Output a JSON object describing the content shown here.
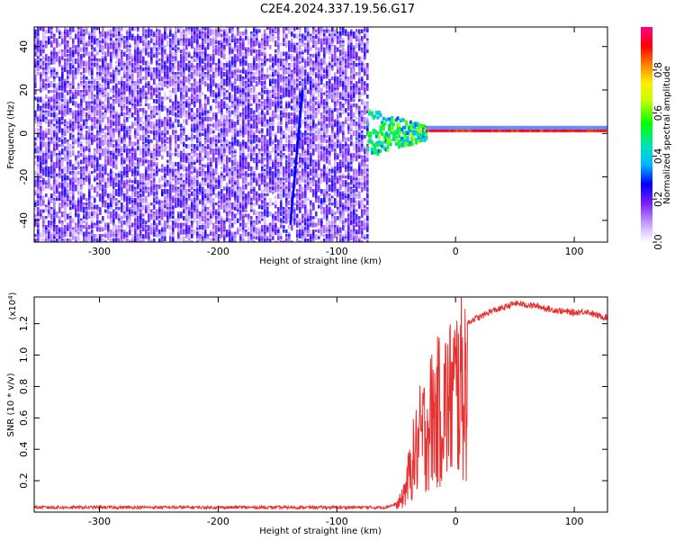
{
  "title": "C2E4.2024.337.19.56.G17",
  "chart_data": [
    {
      "type": "heatmap",
      "title": "C2E4.2024.337.19.56.G17",
      "xlabel": "Height of straight line (km)",
      "ylabel": "Frequency (Hz)",
      "xlim": [
        -355,
        128
      ],
      "ylim": [
        -50,
        49
      ],
      "xticks": [
        -300,
        -200,
        -100,
        0,
        100
      ],
      "yticks": [
        -40,
        -20,
        0,
        20,
        40
      ],
      "colorbar": {
        "label": "Normalized spectral amplitude",
        "range": [
          0,
          1
        ],
        "ticks": [
          0.0,
          0.2,
          0.4,
          0.6,
          0.8
        ],
        "colormap": "rainbow (violet to red to pink)"
      },
      "features": [
        {
          "name": "noise",
          "x_range": [
            -355,
            -75
          ],
          "frequency_range": [
            -50,
            49
          ],
          "amplitude_level": 0.15
        },
        {
          "name": "transition",
          "x_range": [
            -75,
            -25
          ],
          "frequency_range": [
            -12,
            10
          ],
          "amplitude_level": 0.45
        },
        {
          "name": "carrier",
          "x_range": [
            -25,
            128
          ],
          "frequency": 1,
          "amplitude_level": 0.95
        }
      ]
    },
    {
      "type": "line",
      "xlabel": "Height of straight line (km)",
      "ylabel": "SNR (10 * v/v)",
      "yunit_exponent": "(x10",
      "yunit_sup": "4",
      "yunit_close": ")",
      "xlim": [
        -355,
        128
      ],
      "ylim": [
        0,
        1.37
      ],
      "xticks": [
        -300,
        -200,
        -100,
        0,
        100
      ],
      "yticks": [
        0.2,
        0.4,
        0.6,
        0.8,
        1.0,
        1.2
      ],
      "color": "#e83030",
      "series": [
        {
          "x": [
            -355,
            -300,
            -250,
            -200,
            -150,
            -100,
            -60,
            -50,
            -45,
            -40,
            -35,
            -30,
            -25,
            -20,
            -15,
            -10,
            -5,
            0,
            5,
            10,
            15,
            20,
            25,
            30,
            40,
            50,
            60,
            70,
            80,
            90,
            100,
            110,
            120,
            128
          ],
          "y": [
            0.03,
            0.03,
            0.03,
            0.03,
            0.03,
            0.03,
            0.03,
            0.05,
            0.12,
            0.3,
            0.5,
            0.65,
            0.75,
            0.85,
            0.9,
            0.95,
            1.0,
            1.1,
            1.15,
            1.2,
            1.23,
            1.24,
            1.26,
            1.28,
            1.3,
            1.33,
            1.32,
            1.31,
            1.29,
            1.28,
            1.27,
            1.28,
            1.25,
            1.24
          ]
        }
      ]
    }
  ]
}
